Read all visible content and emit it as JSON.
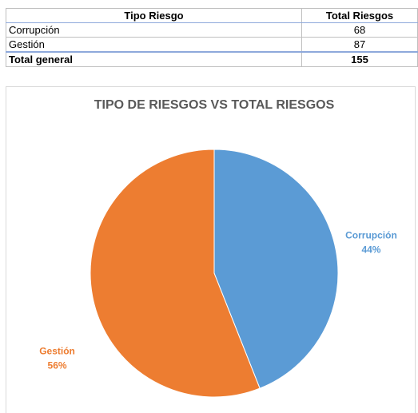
{
  "table": {
    "header": [
      "Tipo Riesgo",
      "Total Riesgos"
    ],
    "rows": [
      [
        "Corrupción",
        68
      ],
      [
        "Gestión",
        87
      ]
    ],
    "total": [
      "Total general",
      155
    ]
  },
  "chart_data": {
    "type": "pie",
    "title": "TIPO DE RIESGOS VS TOTAL RIESGOS",
    "categories": [
      "Corrupción",
      "Gestión"
    ],
    "values": [
      44,
      56
    ],
    "value_labels": [
      "44%",
      "56%"
    ],
    "colors": [
      "#5b9bd5",
      "#ed7d31"
    ]
  }
}
